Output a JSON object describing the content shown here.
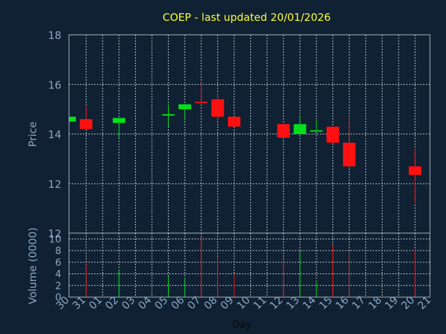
{
  "colors": {
    "background": "#0f2133",
    "title": "#ffff33",
    "axis_text": "#8ea8c3",
    "up": "#00e01a",
    "down": "#ff1111",
    "grid": "#c8d0d8"
  },
  "chart_data": {
    "type": "candlestick",
    "title": "COEP - last updated 20/01/2026",
    "ylabel": "Price",
    "volume_label": "Volume (0000)",
    "xlabel": "Day",
    "ylim": [
      12,
      18
    ],
    "volume_ylim": [
      0,
      11
    ],
    "price_ticks": [
      "18",
      "16",
      "14",
      "12"
    ],
    "volume_ticks": [
      "10",
      "8",
      "6",
      "4",
      "2",
      "0"
    ],
    "price_bottom_label": "12",
    "x_ticks": [
      "30",
      "31",
      "01",
      "02",
      "03",
      "04",
      "05",
      "06",
      "07",
      "08",
      "09",
      "10",
      "11",
      "12",
      "13",
      "14",
      "15",
      "16",
      "17",
      "18",
      "19",
      "20",
      "21"
    ],
    "candles": [
      {
        "day": "30",
        "open": 14.5,
        "close": 14.7,
        "high": 14.7,
        "low": 14.5,
        "volume": 0
      },
      {
        "day": "31",
        "open": 14.6,
        "close": 14.2,
        "high": 15.1,
        "low": 14.2,
        "volume": 5.6
      },
      {
        "day": "02",
        "open": 14.45,
        "close": 14.65,
        "high": 14.65,
        "low": 13.85,
        "volume": 4.8
      },
      {
        "day": "05",
        "open": 14.75,
        "close": 14.8,
        "high": 15.2,
        "low": 14.3,
        "volume": 3.6
      },
      {
        "day": "06",
        "open": 15.0,
        "close": 15.2,
        "high": 15.2,
        "low": 14.55,
        "volume": 3.3
      },
      {
        "day": "07",
        "open": 15.3,
        "close": 15.25,
        "high": 16.05,
        "low": 15.25,
        "volume": 10.3
      },
      {
        "day": "08",
        "open": 15.4,
        "close": 14.7,
        "high": 15.65,
        "low": 14.55,
        "volume": 7.0
      },
      {
        "day": "09",
        "open": 14.7,
        "close": 14.3,
        "high": 14.7,
        "low": 14.3,
        "volume": 4.0
      },
      {
        "day": "12",
        "open": 14.4,
        "close": 13.85,
        "high": 14.4,
        "low": 13.75,
        "volume": 6.4
      },
      {
        "day": "13",
        "open": 14.0,
        "close": 14.4,
        "high": 14.75,
        "low": 14.0,
        "volume": 8.0
      },
      {
        "day": "14",
        "open": 14.1,
        "close": 14.15,
        "high": 14.6,
        "low": 14.1,
        "volume": 2.8
      },
      {
        "day": "15",
        "open": 14.3,
        "close": 13.65,
        "high": 14.3,
        "low": 13.65,
        "volume": 8.9
      },
      {
        "day": "16",
        "open": 13.65,
        "close": 12.7,
        "high": 14.7,
        "low": 12.6,
        "volume": 7.7
      },
      {
        "day": "20",
        "open": 12.7,
        "close": 12.35,
        "high": 13.4,
        "low": 11.2,
        "volume": 8.2
      }
    ]
  }
}
